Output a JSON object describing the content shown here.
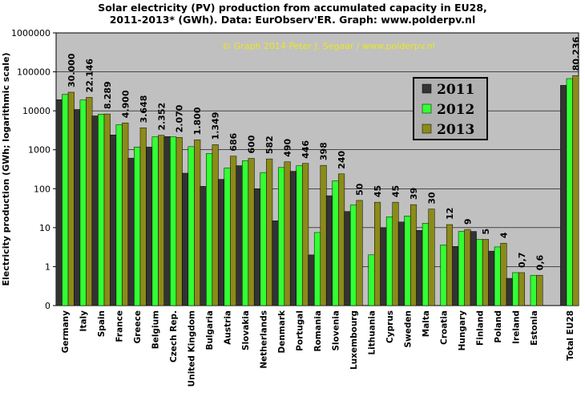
{
  "title_line1": "Solar electricity (PV) production from accumulated capacity in EU28,",
  "title_line2": "2011-2013*  (GWh).  Data: EurObserv'ER.  Graph: www.polderpv.nl",
  "copyright": "© Graph 2014 Peter J. Segaar / www.polderpv.nl",
  "colors": {
    "plot_bg": "#c0c0c0",
    "bar_2011": "#333333",
    "bar_2012": "#33ff33",
    "bar_2013": "#8b8b1a",
    "copyright": "#e8e820"
  },
  "chart_data": {
    "type": "bar",
    "ylabel": "Electricity production (GWh; logarithmic scale)",
    "yscale": "log",
    "ylim": [
      0,
      1000000
    ],
    "yticks": [
      "1000000",
      "100000",
      "10000",
      "1000",
      "100",
      "10",
      "1",
      "0"
    ],
    "legend_position": "top-right",
    "categories": [
      "Germany",
      "Italy",
      "Spain",
      "France",
      "Greece",
      "Belgium",
      "Czech Rep.",
      "United Kingdom",
      "Bulgaria",
      "Austria",
      "Slovakia",
      "Netherlands",
      "Denmark",
      "Portugal",
      "Romania",
      "Slovenia",
      "Luxembourg",
      "Lithuania",
      "Cyprus",
      "Sweden",
      "Malta",
      "Croatia",
      "Hungary",
      "Finland",
      "Poland",
      "Ireland",
      "Estonia",
      "",
      "Total EU28"
    ],
    "series": [
      {
        "name": "2011",
        "values": [
          19300,
          10800,
          7400,
          2400,
          610,
          1170,
          2180,
          250,
          115,
          174,
          390,
          100,
          15,
          280,
          2,
          66,
          26,
          0,
          10,
          14,
          8.5,
          0,
          3.3,
          8,
          2.5,
          0.5,
          0,
          null,
          45000
        ]
      },
      {
        "name": "2012",
        "values": [
          26400,
          18900,
          8200,
          4400,
          1180,
          2150,
          2150,
          1200,
          800,
          340,
          520,
          260,
          350,
          390,
          7.5,
          160,
          38,
          2,
          19,
          20,
          13,
          3.6,
          8,
          5,
          3.2,
          0.7,
          0.6,
          null,
          67000
        ]
      },
      {
        "name": "2013",
        "values": [
          30000,
          22146,
          8289,
          4900,
          3648,
          2352,
          2070,
          1800,
          1349,
          686,
          600,
          582,
          490,
          446,
          398,
          240,
          50,
          45,
          45,
          39,
          30,
          12,
          9,
          5,
          4,
          0.7,
          0.6,
          null,
          80236
        ]
      }
    ],
    "data_labels": [
      "30.000",
      "22.146",
      "8.289",
      "4.900",
      "3.648",
      "2.352",
      "2.070",
      "1.800",
      "1.349",
      "686",
      "600",
      "582",
      "490",
      "446",
      "398",
      "240",
      "50",
      "45",
      "45",
      "39",
      "30",
      "12",
      "9",
      "5",
      "4",
      "0,7",
      "0,6",
      "",
      "80.236"
    ]
  }
}
